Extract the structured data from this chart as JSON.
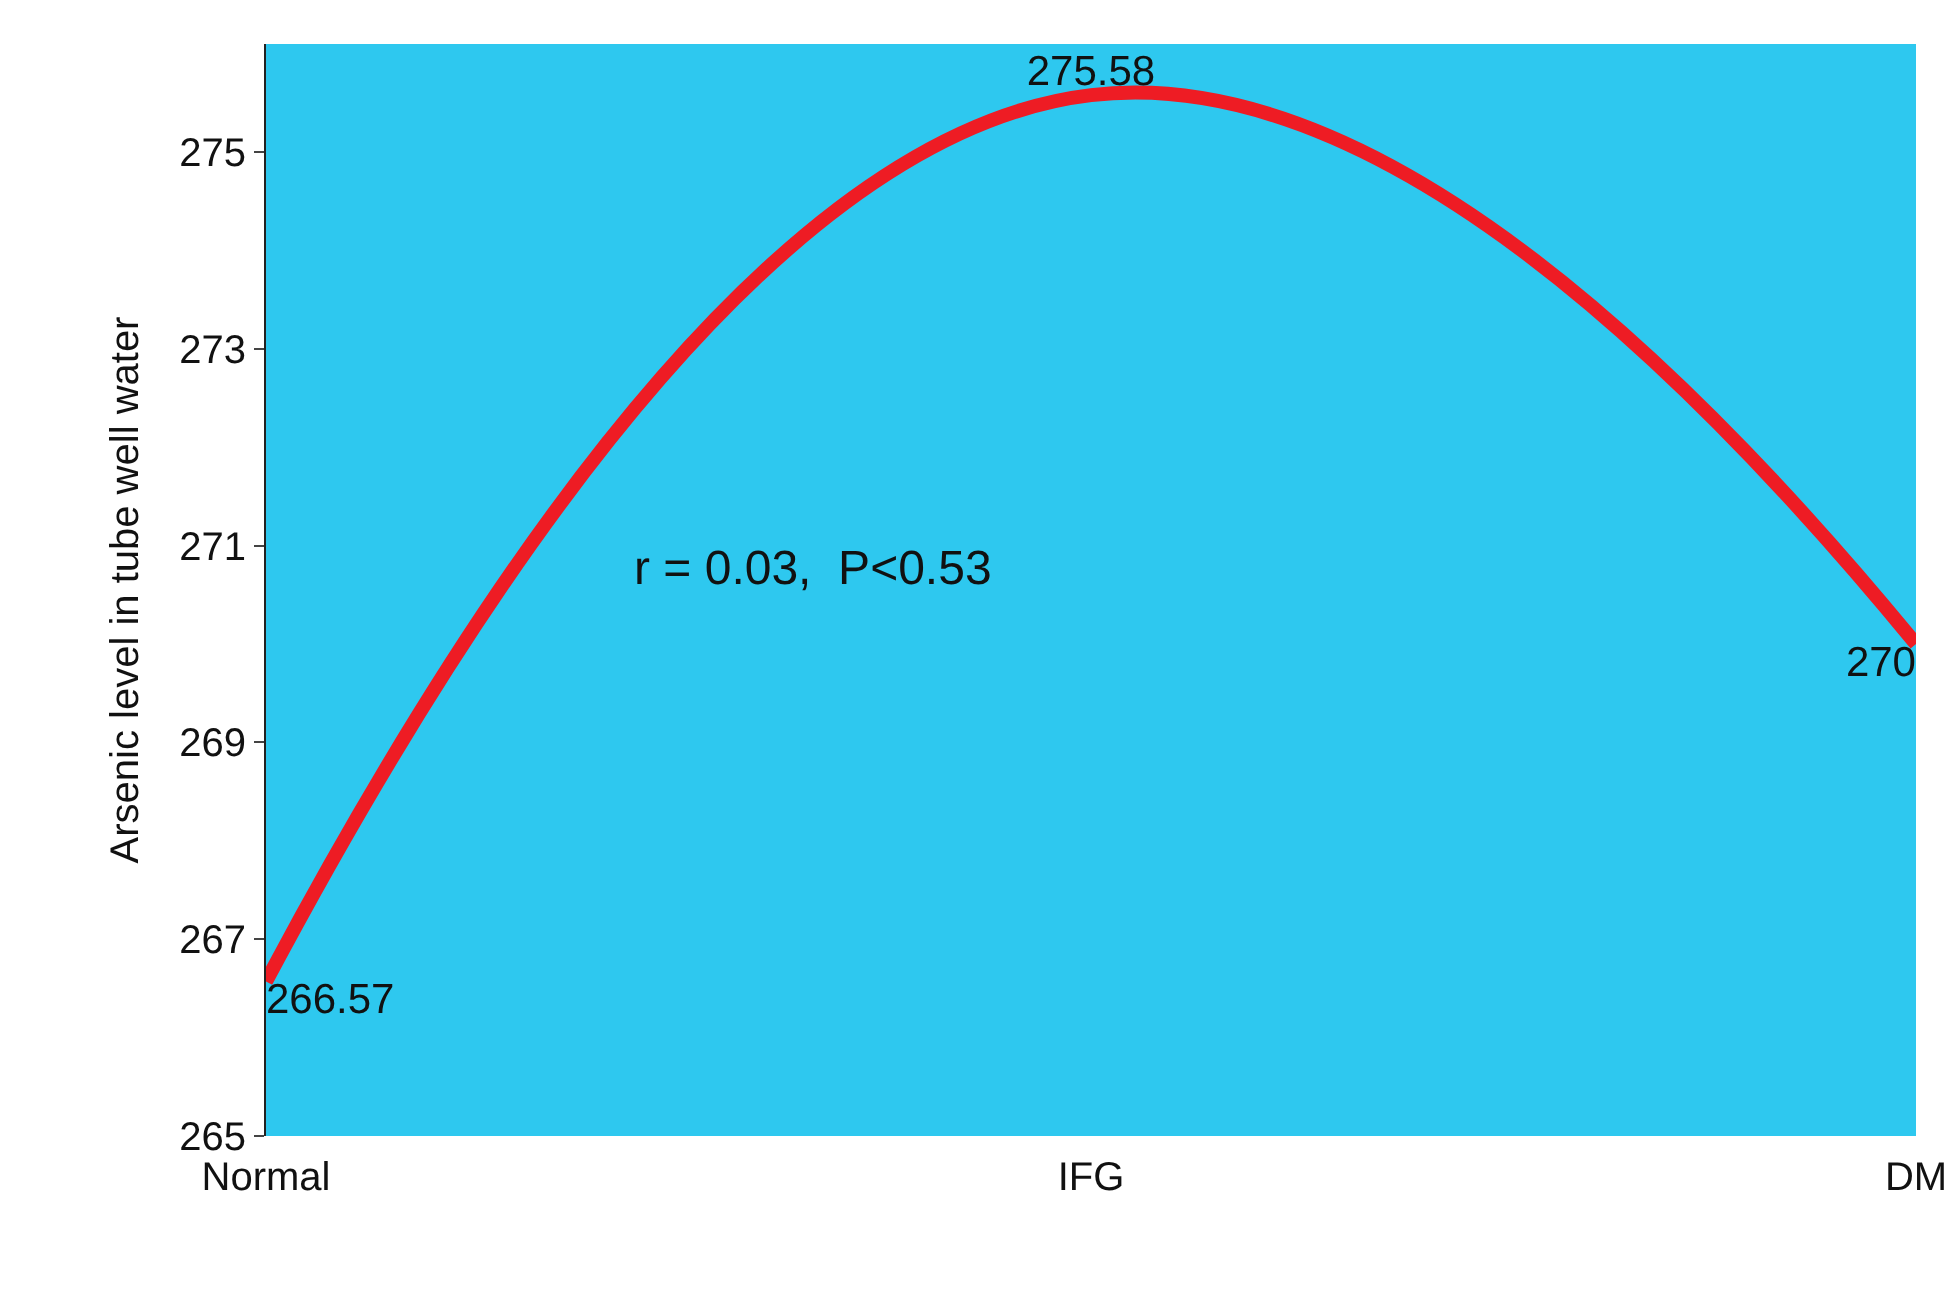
{
  "chart_data": {
    "type": "line",
    "categories": [
      "Normal",
      "IFG",
      "DM"
    ],
    "series": [
      {
        "color": "#ee1c24",
        "values": [
          266.57,
          275.58,
          270
        ]
      }
    ],
    "ylabel": "Arsenic level in tube well water",
    "ylim": [
      265,
      276.1
    ],
    "yticks": [
      265,
      267,
      269,
      271,
      273,
      275
    ],
    "data_labels": true,
    "grid": false,
    "marker": "none",
    "line_style": "solid",
    "annotations": [
      "r = 0.03,  P<0.53"
    ]
  }
}
